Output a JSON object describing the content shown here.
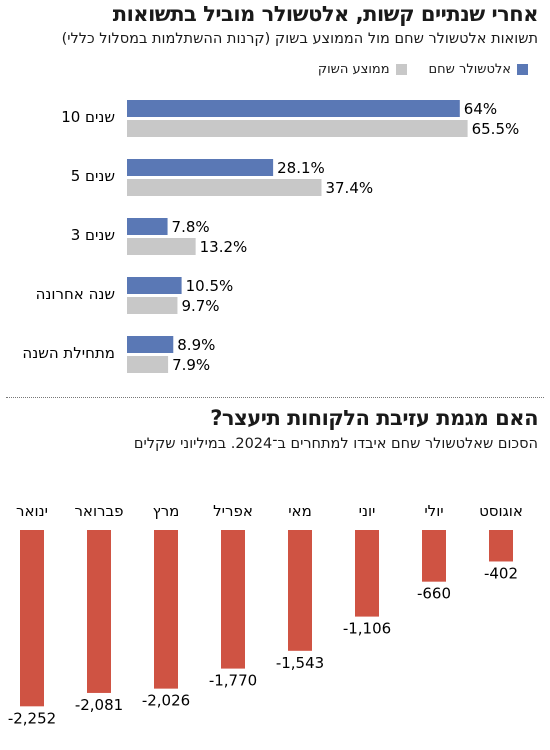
{
  "colors": {
    "altshuler": "#5a78b5",
    "market": "#c8c8c8",
    "decline": "#cf5343"
  },
  "chart1": {
    "title": "אחרי שנתיים קשות, אלטשולר מוביל בתשואות",
    "subtitle": "תשואות אלטשולר שחם מול הממוצע בשוק (קרנות ההשתלמות במסלול כללי)",
    "legend": [
      "אלטשולר שחם",
      "ממוצע השוק"
    ]
  },
  "chart2": {
    "title": "האם מגמת עזיבת הלקוחות תיעצר?",
    "subtitle": "הסכום שאלטשולר שחם איבדו למתחרים ב־2024. במיליוני שקלים"
  },
  "chart_data": [
    {
      "type": "bar",
      "orientation": "horizontal",
      "title": "אחרי שנתיים קשות, אלטשולר מוביל בתשואות",
      "subtitle": "תשואות אלטשולר שחם מול הממוצע בשוק (קרנות ההשתלמות במסלול כללי)",
      "categories": [
        "10 שנים",
        "5 שנים",
        "3 שנים",
        "שנה אחרונה",
        "מתחילת השנה"
      ],
      "series": [
        {
          "name": "אלטשולר שחם",
          "values": [
            64,
            28.1,
            7.8,
            10.5,
            8.9
          ],
          "labels": [
            "64%",
            "28.1%",
            "7.8%",
            "10.5%",
            "8.9%"
          ]
        },
        {
          "name": "ממוצע השוק",
          "values": [
            65.5,
            37.4,
            13.2,
            9.7,
            7.9
          ],
          "labels": [
            "65.5%",
            "37.4%",
            "13.2%",
            "9.7%",
            "7.9%"
          ]
        }
      ],
      "legend_position": "top-right"
    },
    {
      "type": "bar",
      "orientation": "vertical",
      "title": "האם מגמת עזיבת הלקוחות תיעצר?",
      "subtitle": "הסכום שאלטשולר שחם איבדו למתחרים ב־2024. במיליוני שקלים",
      "categories": [
        "ינואר",
        "פברואר",
        "מרץ",
        "אפריל",
        "מאי",
        "יוני",
        "יולי",
        "אוגוסט"
      ],
      "values": [
        -2252,
        -2081,
        -2026,
        -1770,
        -1543,
        -1106,
        -660,
        -402
      ],
      "labels": [
        "-2,252",
        "-2,081",
        "-2,026",
        "-1,770",
        "-1,543",
        "-1,106",
        "-660",
        "-402"
      ]
    }
  ]
}
